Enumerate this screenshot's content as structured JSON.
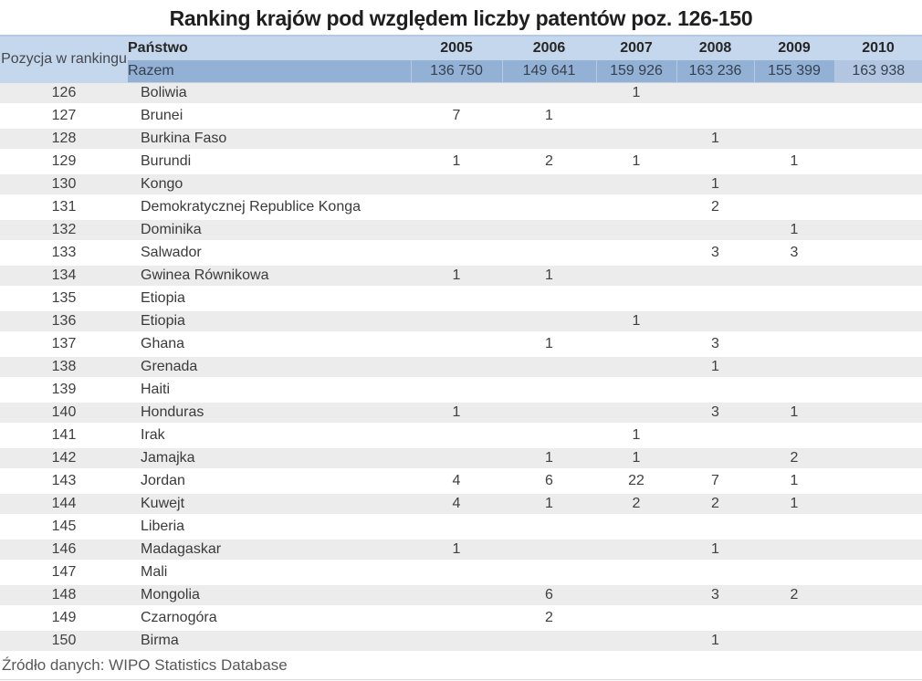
{
  "title": "Ranking krajów pod względem liczby patentów poz. 126-150",
  "source_note": "Źródło danych: WIPO Statistics Database",
  "colors": {
    "header_bg": "#c5d7ed",
    "total_row_bg": "#93b0d5",
    "total_last_cell_bg": "#b2c6e2",
    "stripe_bg": "#ececec",
    "title_text": "#1f1f1f",
    "header_text": "#262626",
    "body_text": "#404040",
    "source_text": "#595959"
  },
  "table": {
    "position_header": "Pozycja w rankingu",
    "country_header": "Państwo",
    "year_columns": [
      "2005",
      "2006",
      "2007",
      "2008",
      "2009",
      "2010"
    ],
    "total_row": {
      "label": "Razem",
      "values": [
        "136 750",
        "149 641",
        "159 926",
        "163 236",
        "155 399",
        "163 938"
      ]
    },
    "rows": [
      {
        "position": "126",
        "country": "Boliwia",
        "values": [
          "",
          "",
          "1",
          "",
          "",
          ""
        ]
      },
      {
        "position": "127",
        "country": "Brunei",
        "values": [
          "7",
          "1",
          "",
          "",
          "",
          ""
        ]
      },
      {
        "position": "128",
        "country": "Burkina Faso",
        "values": [
          "",
          "",
          "",
          "1",
          "",
          ""
        ]
      },
      {
        "position": "129",
        "country": "Burundi",
        "values": [
          "1",
          "2",
          "1",
          "",
          "1",
          ""
        ]
      },
      {
        "position": "130",
        "country": "Kongo",
        "values": [
          "",
          "",
          "",
          "1",
          "",
          ""
        ]
      },
      {
        "position": "131",
        "country": "Demokratycznej Republice Konga",
        "values": [
          "",
          "",
          "",
          "2",
          "",
          ""
        ]
      },
      {
        "position": "132",
        "country": "Dominika",
        "values": [
          "",
          "",
          "",
          "",
          "1",
          ""
        ]
      },
      {
        "position": "133",
        "country": "Salwador",
        "values": [
          "",
          "",
          "",
          "3",
          "3",
          ""
        ]
      },
      {
        "position": "134",
        "country": "Gwinea Równikowa",
        "values": [
          "1",
          "1",
          "",
          "",
          "",
          ""
        ]
      },
      {
        "position": "135",
        "country": "Etiopia",
        "values": [
          "",
          "",
          "",
          "",
          "",
          ""
        ]
      },
      {
        "position": "136",
        "country": "Etiopia",
        "values": [
          "",
          "",
          "1",
          "",
          "",
          ""
        ]
      },
      {
        "position": "137",
        "country": "Ghana",
        "values": [
          "",
          "1",
          "",
          "3",
          "",
          ""
        ]
      },
      {
        "position": "138",
        "country": "Grenada",
        "values": [
          "",
          "",
          "",
          "1",
          "",
          ""
        ]
      },
      {
        "position": "139",
        "country": "Haiti",
        "values": [
          "",
          "",
          "",
          "",
          "",
          ""
        ]
      },
      {
        "position": "140",
        "country": "Honduras",
        "values": [
          "1",
          "",
          "",
          "3",
          "1",
          ""
        ]
      },
      {
        "position": "141",
        "country": "Irak",
        "values": [
          "",
          "",
          "1",
          "",
          "",
          ""
        ]
      },
      {
        "position": "142",
        "country": "Jamajka",
        "values": [
          "",
          "1",
          "1",
          "",
          "2",
          ""
        ]
      },
      {
        "position": "143",
        "country": "Jordan",
        "values": [
          "4",
          "6",
          "22",
          "7",
          "1",
          ""
        ]
      },
      {
        "position": "144",
        "country": "Kuwejt",
        "values": [
          "4",
          "1",
          "2",
          "2",
          "1",
          ""
        ]
      },
      {
        "position": "145",
        "country": "Liberia",
        "values": [
          "",
          "",
          "",
          "",
          "",
          ""
        ]
      },
      {
        "position": "146",
        "country": "Madagaskar",
        "values": [
          "1",
          "",
          "",
          "1",
          "",
          ""
        ]
      },
      {
        "position": "147",
        "country": "Mali",
        "values": [
          "",
          "",
          "",
          "",
          "",
          ""
        ]
      },
      {
        "position": "148",
        "country": "Mongolia",
        "values": [
          "",
          "6",
          "",
          "3",
          "2",
          ""
        ]
      },
      {
        "position": "149",
        "country": "Czarnogóra",
        "values": [
          "",
          "2",
          "",
          "",
          "",
          ""
        ]
      },
      {
        "position": "150",
        "country": "Birma",
        "values": [
          "",
          "",
          "",
          "1",
          "",
          ""
        ]
      }
    ]
  },
  "chart_data": {
    "type": "table",
    "title": "Ranking krajów pod względem liczby patentów poz. 126-150",
    "columns": [
      "Pozycja w rankingu",
      "Państwo",
      "2005",
      "2006",
      "2007",
      "2008",
      "2009",
      "2010"
    ],
    "total": {
      "label": "Razem",
      "values": [
        136750,
        149641,
        159926,
        163236,
        155399,
        163938
      ]
    },
    "rows": [
      {
        "position": 126,
        "country": "Boliwia",
        "values": [
          null,
          null,
          1,
          null,
          null,
          null
        ]
      },
      {
        "position": 127,
        "country": "Brunei",
        "values": [
          7,
          1,
          null,
          null,
          null,
          null
        ]
      },
      {
        "position": 128,
        "country": "Burkina Faso",
        "values": [
          null,
          null,
          null,
          1,
          null,
          null
        ]
      },
      {
        "position": 129,
        "country": "Burundi",
        "values": [
          1,
          2,
          1,
          null,
          1,
          null
        ]
      },
      {
        "position": 130,
        "country": "Kongo",
        "values": [
          null,
          null,
          null,
          1,
          null,
          null
        ]
      },
      {
        "position": 131,
        "country": "Demokratycznej Republice Konga",
        "values": [
          null,
          null,
          null,
          2,
          null,
          null
        ]
      },
      {
        "position": 132,
        "country": "Dominika",
        "values": [
          null,
          null,
          null,
          null,
          1,
          null
        ]
      },
      {
        "position": 133,
        "country": "Salwador",
        "values": [
          null,
          null,
          null,
          3,
          3,
          null
        ]
      },
      {
        "position": 134,
        "country": "Gwinea Równikowa",
        "values": [
          1,
          1,
          null,
          null,
          null,
          null
        ]
      },
      {
        "position": 135,
        "country": "Etiopia",
        "values": [
          null,
          null,
          null,
          null,
          null,
          null
        ]
      },
      {
        "position": 136,
        "country": "Etiopia",
        "values": [
          null,
          null,
          1,
          null,
          null,
          null
        ]
      },
      {
        "position": 137,
        "country": "Ghana",
        "values": [
          null,
          1,
          null,
          3,
          null,
          null
        ]
      },
      {
        "position": 138,
        "country": "Grenada",
        "values": [
          null,
          null,
          null,
          1,
          null,
          null
        ]
      },
      {
        "position": 139,
        "country": "Haiti",
        "values": [
          null,
          null,
          null,
          null,
          null,
          null
        ]
      },
      {
        "position": 140,
        "country": "Honduras",
        "values": [
          1,
          null,
          null,
          3,
          1,
          null
        ]
      },
      {
        "position": 141,
        "country": "Irak",
        "values": [
          null,
          null,
          1,
          null,
          null,
          null
        ]
      },
      {
        "position": 142,
        "country": "Jamajka",
        "values": [
          null,
          1,
          1,
          null,
          2,
          null
        ]
      },
      {
        "position": 143,
        "country": "Jordan",
        "values": [
          4,
          6,
          22,
          7,
          1,
          null
        ]
      },
      {
        "position": 144,
        "country": "Kuwejt",
        "values": [
          4,
          1,
          2,
          2,
          1,
          null
        ]
      },
      {
        "position": 145,
        "country": "Liberia",
        "values": [
          null,
          null,
          null,
          null,
          null,
          null
        ]
      },
      {
        "position": 146,
        "country": "Madagaskar",
        "values": [
          1,
          null,
          null,
          1,
          null,
          null
        ]
      },
      {
        "position": 147,
        "country": "Mali",
        "values": [
          null,
          null,
          null,
          null,
          null,
          null
        ]
      },
      {
        "position": 148,
        "country": "Mongolia",
        "values": [
          null,
          6,
          null,
          3,
          2,
          null
        ]
      },
      {
        "position": 149,
        "country": "Czarnogóra",
        "values": [
          null,
          2,
          null,
          null,
          null,
          null
        ]
      },
      {
        "position": 150,
        "country": "Birma",
        "values": [
          null,
          null,
          null,
          1,
          null,
          null
        ]
      }
    ]
  }
}
